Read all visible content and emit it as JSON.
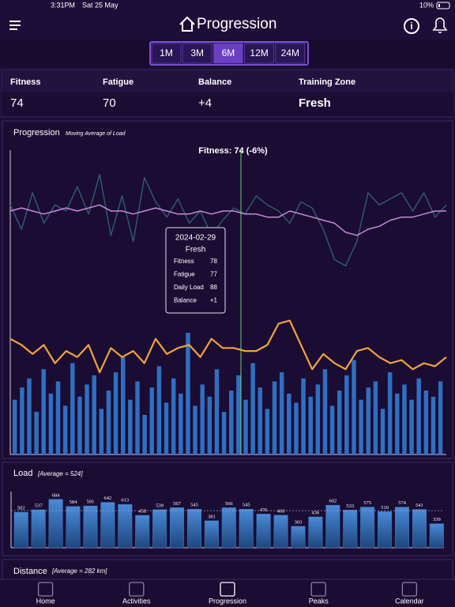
{
  "status_bar": {
    "time": "3:31PM",
    "date": "Sat 25 May",
    "battery": "10%"
  },
  "header": {
    "title": "Progression"
  },
  "ranges": {
    "options": [
      "1M",
      "3M",
      "6M",
      "12M",
      "24M"
    ],
    "selected": "6M"
  },
  "stats": [
    {
      "label": "Fitness",
      "value": 74
    },
    {
      "label": "Fatigue",
      "value": 70
    },
    {
      "label": "Balance",
      "value": "+4"
    },
    {
      "label": "Training Zone",
      "value": "Fresh"
    }
  ],
  "chart_data": [
    {
      "type": "line",
      "title": "Progression",
      "subtitle": "Moving Average of Load",
      "annotation": "Fitness: 74 (-6%)",
      "ylim": [
        0,
        100
      ],
      "tooltip": {
        "date": "2024-02-29",
        "zone": "Fresh",
        "rows": [
          {
            "label": "Fitness",
            "value": 78
          },
          {
            "label": "Fatigue",
            "value": 77
          },
          {
            "label": "Daily Load",
            "value": 88
          },
          {
            "label": "Balance",
            "value": "+1"
          }
        ]
      },
      "series": [
        {
          "name": "Fatigue",
          "color": "#2e5a6e",
          "values": [
            82,
            74,
            86,
            76,
            82,
            80,
            88,
            79,
            92,
            72,
            85,
            70,
            91,
            83,
            78,
            84,
            76,
            80,
            72,
            77,
            81,
            79,
            85,
            82,
            80,
            76,
            83,
            81,
            74,
            64,
            62,
            70,
            86,
            82,
            84,
            86,
            80,
            86,
            78,
            82
          ]
        },
        {
          "name": "Fitness",
          "color": "#c58ad8",
          "values": [
            80,
            81,
            80,
            79,
            80,
            81,
            80,
            81,
            82,
            80,
            80,
            79,
            80,
            81,
            80,
            79,
            79,
            80,
            79,
            80,
            80,
            79,
            79,
            78,
            78,
            80,
            79,
            78,
            77,
            76,
            73,
            72,
            74,
            75,
            77,
            78,
            78,
            79,
            80,
            80
          ]
        },
        {
          "name": "Balance",
          "color": "#f2a33a",
          "values": [
            38,
            36,
            33,
            36,
            30,
            34,
            32,
            36,
            27,
            35,
            32,
            34,
            30,
            38,
            33,
            35,
            36,
            32,
            38,
            35,
            35,
            34,
            34,
            36,
            43,
            44,
            36,
            28,
            33,
            30,
            28,
            34,
            35,
            32,
            30,
            31,
            28,
            30,
            29,
            32
          ]
        }
      ],
      "bars": {
        "name": "Daily Load",
        "color": "#2f6fc0",
        "values": [
          18,
          22,
          25,
          14,
          28,
          20,
          24,
          16,
          30,
          19,
          23,
          26,
          15,
          21,
          27,
          32,
          18,
          24,
          13,
          22,
          29,
          17,
          25,
          20,
          40,
          16,
          23,
          19,
          28,
          14,
          21,
          26,
          18,
          30,
          22,
          15,
          24,
          27,
          20,
          17,
          25,
          19,
          23,
          28,
          16,
          21,
          26,
          31,
          18,
          22,
          24,
          15,
          27,
          20,
          23,
          18,
          25,
          21,
          19,
          24
        ]
      }
    },
    {
      "type": "bar",
      "title": "Load",
      "subtitle": "[Average = 524]",
      "average": 524,
      "ylim": [
        0,
        760
      ],
      "color": "#3a7cc8",
      "values": [
        502,
        537,
        684,
        584,
        591,
        642,
        613,
        458,
        539,
        567,
        545,
        381,
        566,
        545,
        476,
        460,
        303,
        436,
        602,
        533,
        575,
        510,
        574,
        541,
        339
      ]
    }
  ],
  "distance": {
    "title": "Distance",
    "subtitle": "[Average = 282 km]"
  },
  "tabs": {
    "items": [
      "Home",
      "Activities",
      "Progression",
      "Peaks",
      "Calendar"
    ],
    "selected": "Progression"
  }
}
